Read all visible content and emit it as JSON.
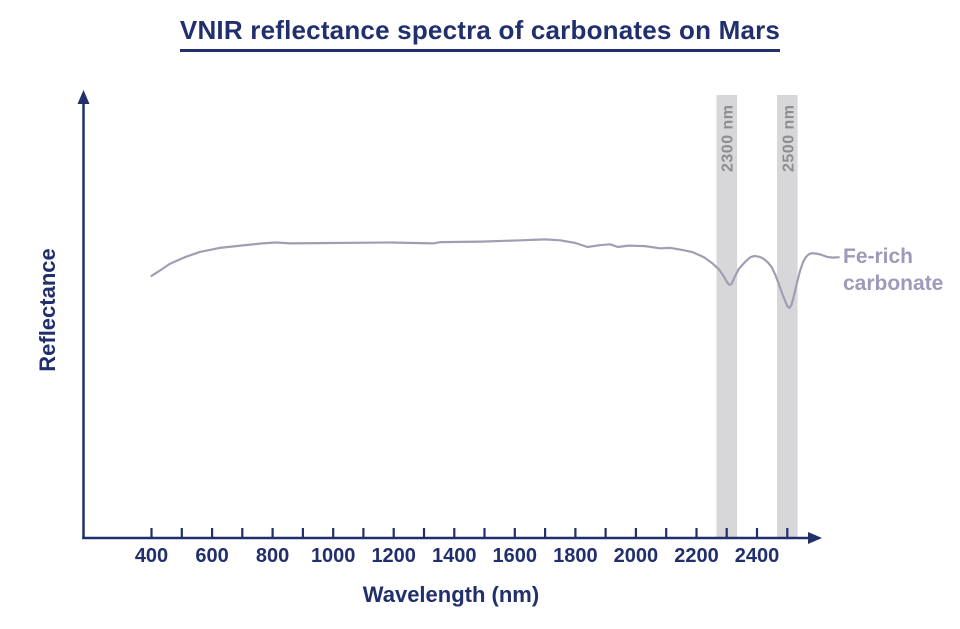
{
  "chart": {
    "title": "VNIR reflectance spectra of carbonates on Mars",
    "xlabel": "Wavelength (nm)",
    "ylabel": "Reflectance",
    "series_label_text": "Fe-rich\ncarbonate"
  },
  "colors": {
    "navy": "#212f6d",
    "curve": "#a39db3",
    "series_label": "#a099b9",
    "band_fill": "#d7d7d9",
    "band_label": "#8d8d92",
    "background": "#ffffff"
  },
  "chart_data": {
    "type": "line",
    "title": "VNIR reflectance spectra of carbonates on Mars",
    "xlabel": "Wavelength (nm)",
    "ylabel": "Reflectance",
    "xlim": [
      175,
      2610
    ],
    "ylim": [
      0,
      1
    ],
    "grid": false,
    "x_ticks": [
      400,
      500,
      600,
      700,
      800,
      900,
      1000,
      1100,
      1200,
      1300,
      1400,
      1500,
      1600,
      1700,
      1800,
      1900,
      2000,
      2100,
      2200,
      2300,
      2400,
      2500
    ],
    "x_tick_labels": [
      400,
      600,
      800,
      1000,
      1200,
      1400,
      1600,
      1800,
      2000,
      2200,
      2400
    ],
    "y_ticks": [],
    "legend_position": "right of curve end",
    "highlight_bands": [
      {
        "center_nm": 2300,
        "width_nm": 68,
        "label": "2300 nm"
      },
      {
        "center_nm": 2500,
        "width_nm": 68,
        "label": "2500 nm"
      }
    ],
    "series": [
      {
        "name": "Fe-rich carbonate",
        "x": [
          400,
          430,
          460,
          510,
          560,
          625,
          695,
          765,
          810,
          860,
          990,
          1190,
          1330,
          1355,
          1490,
          1620,
          1700,
          1750,
          1800,
          1840,
          1880,
          1915,
          1940,
          1975,
          2030,
          2080,
          2115,
          2155,
          2185,
          2225,
          2255,
          2275,
          2290,
          2300,
          2308,
          2316,
          2325,
          2340,
          2360,
          2378,
          2392,
          2408,
          2420,
          2435,
          2448,
          2460,
          2472,
          2482,
          2492,
          2500,
          2507,
          2514,
          2522,
          2532,
          2542,
          2552,
          2562,
          2572,
          2582,
          2595,
          2610,
          2630,
          2650,
          2670
        ],
        "y": [
          0.589,
          0.602,
          0.616,
          0.631,
          0.643,
          0.652,
          0.657,
          0.662,
          0.664,
          0.662,
          0.663,
          0.664,
          0.662,
          0.665,
          0.666,
          0.669,
          0.671,
          0.669,
          0.663,
          0.654,
          0.658,
          0.66,
          0.654,
          0.657,
          0.656,
          0.651,
          0.652,
          0.647,
          0.643,
          0.631,
          0.616,
          0.603,
          0.588,
          0.576,
          0.569,
          0.571,
          0.585,
          0.605,
          0.62,
          0.631,
          0.634,
          0.632,
          0.628,
          0.62,
          0.609,
          0.592,
          0.571,
          0.551,
          0.534,
          0.521,
          0.517,
          0.524,
          0.545,
          0.574,
          0.6,
          0.62,
          0.632,
          0.638,
          0.64,
          0.639,
          0.637,
          0.632,
          0.63,
          0.631
        ],
        "absorption_features_nm": [
          2300,
          2500
        ]
      }
    ]
  }
}
